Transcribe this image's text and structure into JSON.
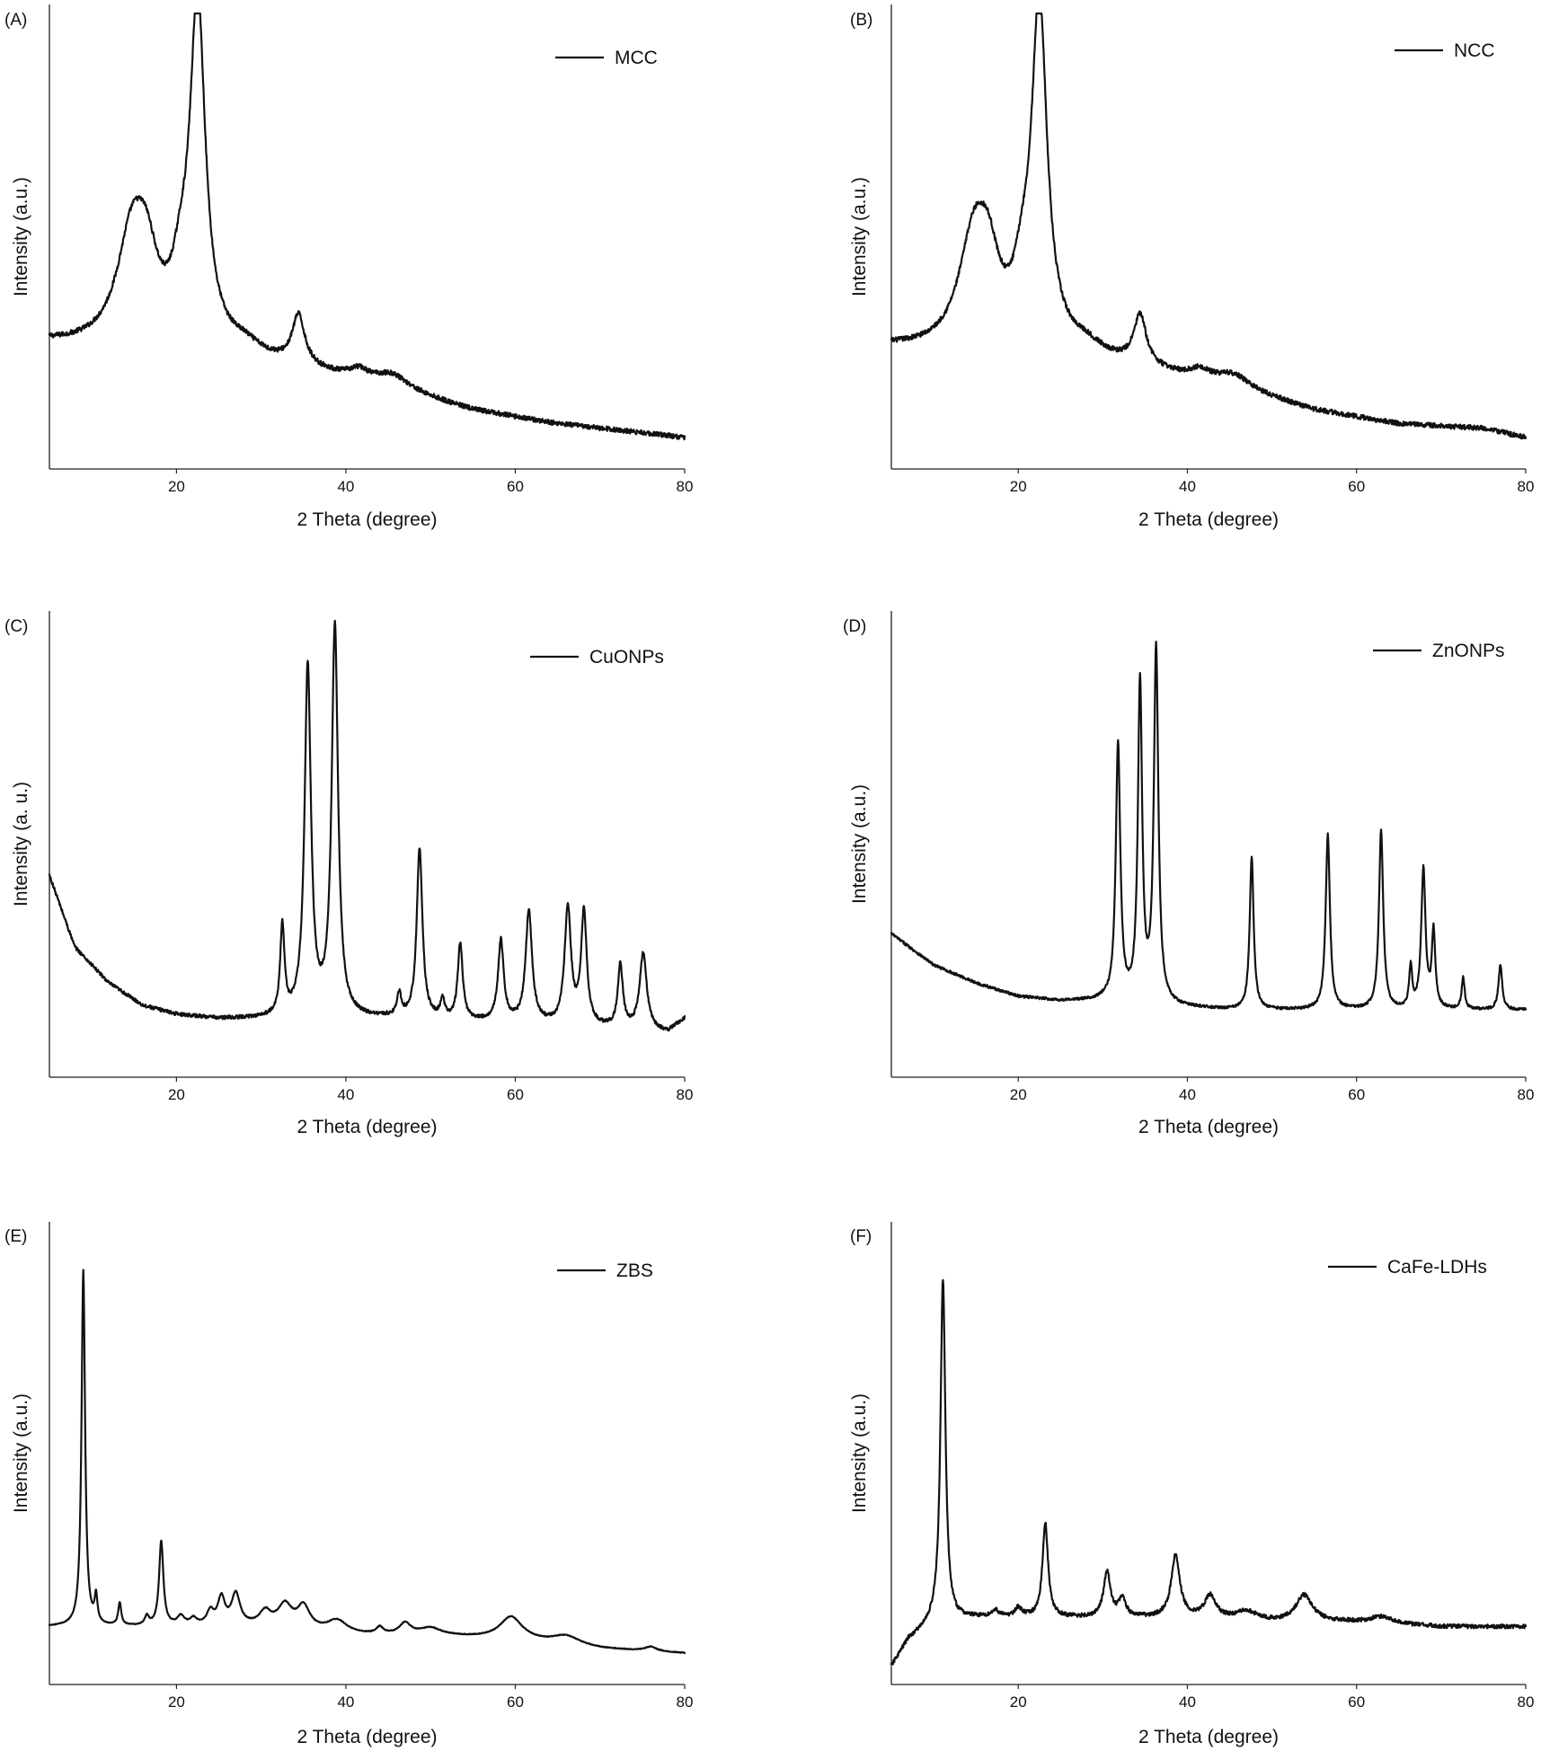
{
  "colors": {
    "line": "#111111",
    "axis": "#222222",
    "background": "#ffffff"
  },
  "chart_data": [
    {
      "panel": "(A)",
      "type": "line",
      "title": "",
      "xlabel": "2 Theta (degree)",
      "ylabel": "Intensity (a.u.)",
      "xlim": [
        5,
        80
      ],
      "ylim": [
        0,
        100
      ],
      "xticks": [
        20,
        40,
        60,
        80
      ],
      "series": [
        {
          "name": "MCC",
          "noise": 0.55,
          "baseline": [
            [
              5,
              26
            ],
            [
              15,
              24
            ],
            [
              25,
              23
            ],
            [
              35,
              20
            ],
            [
              45,
              16
            ],
            [
              55,
              11
            ],
            [
              65,
              8
            ],
            [
              75,
              6
            ],
            [
              80,
              5
            ]
          ],
          "peaks": [
            [
              14.8,
              25,
              2.2
            ],
            [
              16.5,
              13,
              1.6
            ],
            [
              20.5,
              11,
              1.3
            ],
            [
              22.5,
              76,
              1.1
            ],
            [
              28,
              2.5,
              2.5
            ],
            [
              34.4,
              11,
              0.9
            ],
            [
              41.5,
              2,
              1.3
            ],
            [
              45.5,
              3,
              2.5
            ]
          ]
        }
      ]
    },
    {
      "panel": "(B)",
      "type": "line",
      "title": "",
      "xlabel": "2 Theta (degree)",
      "ylabel": "Intensity (a.u.)",
      "xlim": [
        5,
        80
      ],
      "ylim": [
        0,
        100
      ],
      "xticks": [
        20,
        40,
        60,
        80
      ],
      "series": [
        {
          "name": "NCC",
          "noise": 0.55,
          "baseline": [
            [
              5,
              25
            ],
            [
              15,
              23
            ],
            [
              25,
              23
            ],
            [
              35,
              20
            ],
            [
              45,
              16
            ],
            [
              55,
              11
            ],
            [
              65,
              8
            ],
            [
              75,
              7
            ],
            [
              80,
              5
            ]
          ],
          "peaks": [
            [
              14.8,
              25,
              2.2
            ],
            [
              16.5,
              13,
              1.6
            ],
            [
              20.5,
              11,
              1.3
            ],
            [
              22.5,
              76,
              1.1
            ],
            [
              28,
              2.5,
              2.5
            ],
            [
              34.4,
              11,
              0.9
            ],
            [
              41.5,
              2,
              1.3
            ],
            [
              45.5,
              3,
              2.5
            ]
          ]
        }
      ]
    },
    {
      "panel": "(C)",
      "type": "line",
      "title": "",
      "xlabel": "2 Theta (degree)",
      "ylabel": "Intensity (a. u.)",
      "xlim": [
        5,
        80
      ],
      "ylim": [
        0,
        100
      ],
      "xticks": [
        20,
        40,
        60,
        80
      ],
      "series": [
        {
          "name": "CuONPs",
          "noise": 0.4,
          "baseline": [
            [
              5,
              43
            ],
            [
              8,
              27
            ],
            [
              12,
              19
            ],
            [
              16,
              14
            ],
            [
              20,
              12
            ],
            [
              25,
              11
            ],
            [
              30,
              11
            ],
            [
              35,
              11
            ],
            [
              45,
              11
            ],
            [
              60,
              10
            ],
            [
              70,
              9
            ],
            [
              78,
              8
            ],
            [
              80,
              11
            ]
          ],
          "peaks": [
            [
              32.5,
              20,
              0.3
            ],
            [
              35.5,
              78,
              0.45
            ],
            [
              38.7,
              87,
              0.45
            ],
            [
              46.3,
              5,
              0.3
            ],
            [
              48.7,
              38,
              0.4
            ],
            [
              51.4,
              4,
              0.3
            ],
            [
              53.5,
              17,
              0.35
            ],
            [
              58.3,
              18,
              0.4
            ],
            [
              61.6,
              25,
              0.45
            ],
            [
              66.2,
              26,
              0.45
            ],
            [
              68.1,
              25,
              0.4
            ],
            [
              72.4,
              14,
              0.35
            ],
            [
              75.1,
              17,
              0.5
            ]
          ]
        }
      ]
    },
    {
      "panel": "(D)",
      "type": "line",
      "title": "",
      "xlabel": "2 Theta (degree)",
      "ylabel": "Intensity (a.u.)",
      "xlim": [
        5,
        80
      ],
      "ylim": [
        0,
        100
      ],
      "xticks": [
        20,
        40,
        60,
        80
      ],
      "series": [
        {
          "name": "ZnONPs",
          "noise": 0.3,
          "baseline": [
            [
              5,
              30
            ],
            [
              10,
              23
            ],
            [
              15,
              19
            ],
            [
              20,
              16
            ],
            [
              25,
              15
            ],
            [
              30,
              15
            ],
            [
              35,
              14
            ],
            [
              45,
              13
            ],
            [
              60,
              13
            ],
            [
              70,
              13
            ],
            [
              80,
              13
            ]
          ],
          "peaks": [
            [
              31.8,
              57,
              0.32
            ],
            [
              34.4,
              71,
              0.3
            ],
            [
              36.3,
              79,
              0.32
            ],
            [
              47.6,
              34,
              0.28
            ],
            [
              56.6,
              39,
              0.3
            ],
            [
              62.9,
              40,
              0.3
            ],
            [
              66.4,
              9,
              0.22
            ],
            [
              67.9,
              31,
              0.3
            ],
            [
              69.1,
              17,
              0.25
            ],
            [
              72.6,
              7,
              0.22
            ],
            [
              77,
              10,
              0.26
            ]
          ]
        }
      ]
    },
    {
      "panel": "(E)",
      "type": "line",
      "title": "",
      "xlabel": "2 Theta (degree)",
      "ylabel": "Intensity (a.u.)",
      "xlim": [
        5,
        80
      ],
      "ylim": [
        0,
        100
      ],
      "xticks": [
        20,
        40,
        60,
        80
      ],
      "series": [
        {
          "name": "ZBS",
          "noise": 0.08,
          "baseline": [
            [
              5,
              11
            ],
            [
              10,
              11
            ],
            [
              15,
              11
            ],
            [
              20,
              11
            ],
            [
              25,
              11
            ],
            [
              30,
              11
            ],
            [
              40,
              9
            ],
            [
              50,
              9
            ],
            [
              60,
              8
            ],
            [
              70,
              6
            ],
            [
              80,
              5
            ]
          ],
          "peaks": [
            [
              9,
              80,
              0.25
            ],
            [
              10.5,
              6,
              0.2
            ],
            [
              13.3,
              5,
              0.22
            ],
            [
              16.5,
              2,
              0.3
            ],
            [
              18.2,
              19,
              0.3
            ],
            [
              20.5,
              2,
              0.5
            ],
            [
              22,
              1.5,
              0.5
            ],
            [
              24,
              3,
              0.5
            ],
            [
              25.3,
              6,
              0.5
            ],
            [
              27,
              7,
              0.6
            ],
            [
              30.5,
              3,
              0.8
            ],
            [
              32.8,
              5,
              1.0
            ],
            [
              35,
              5,
              0.9
            ],
            [
              39,
              3,
              1.5
            ],
            [
              44,
              1.5,
              0.5
            ],
            [
              47,
              2.5,
              0.8
            ],
            [
              50,
              1.5,
              1.5
            ],
            [
              59.5,
              5,
              1.6
            ],
            [
              66,
              2,
              2.0
            ],
            [
              76,
              1,
              0.8
            ]
          ]
        }
      ]
    },
    {
      "panel": "(F)",
      "type": "line",
      "title": "",
      "xlabel": "2 Theta (degree)",
      "ylabel": "Intensity (a.u.)",
      "xlim": [
        5,
        80
      ],
      "ylim": [
        0,
        100
      ],
      "xticks": [
        20,
        40,
        60,
        80
      ],
      "series": [
        {
          "name": "CaFe-LDHs",
          "noise": 0.45,
          "baseline": [
            [
              5,
              2
            ],
            [
              7,
              8
            ],
            [
              10,
              12
            ],
            [
              15,
              13
            ],
            [
              20,
              13
            ],
            [
              25,
              13
            ],
            [
              30,
              13
            ],
            [
              40,
              13
            ],
            [
              50,
              12
            ],
            [
              60,
              12
            ],
            [
              70,
              11
            ],
            [
              80,
              11
            ]
          ],
          "peaks": [
            [
              11.1,
              77,
              0.35
            ],
            [
              17.3,
              1.5,
              0.5
            ],
            [
              20,
              2,
              0.5
            ],
            [
              23.2,
              21,
              0.4
            ],
            [
              30.5,
              10,
              0.5
            ],
            [
              32.3,
              4,
              0.5
            ],
            [
              38.6,
              14,
              0.6
            ],
            [
              42.7,
              5,
              0.8
            ],
            [
              47,
              2,
              1.5
            ],
            [
              53.8,
              6,
              1.2
            ],
            [
              63,
              1.5,
              1.5
            ]
          ]
        }
      ]
    }
  ]
}
